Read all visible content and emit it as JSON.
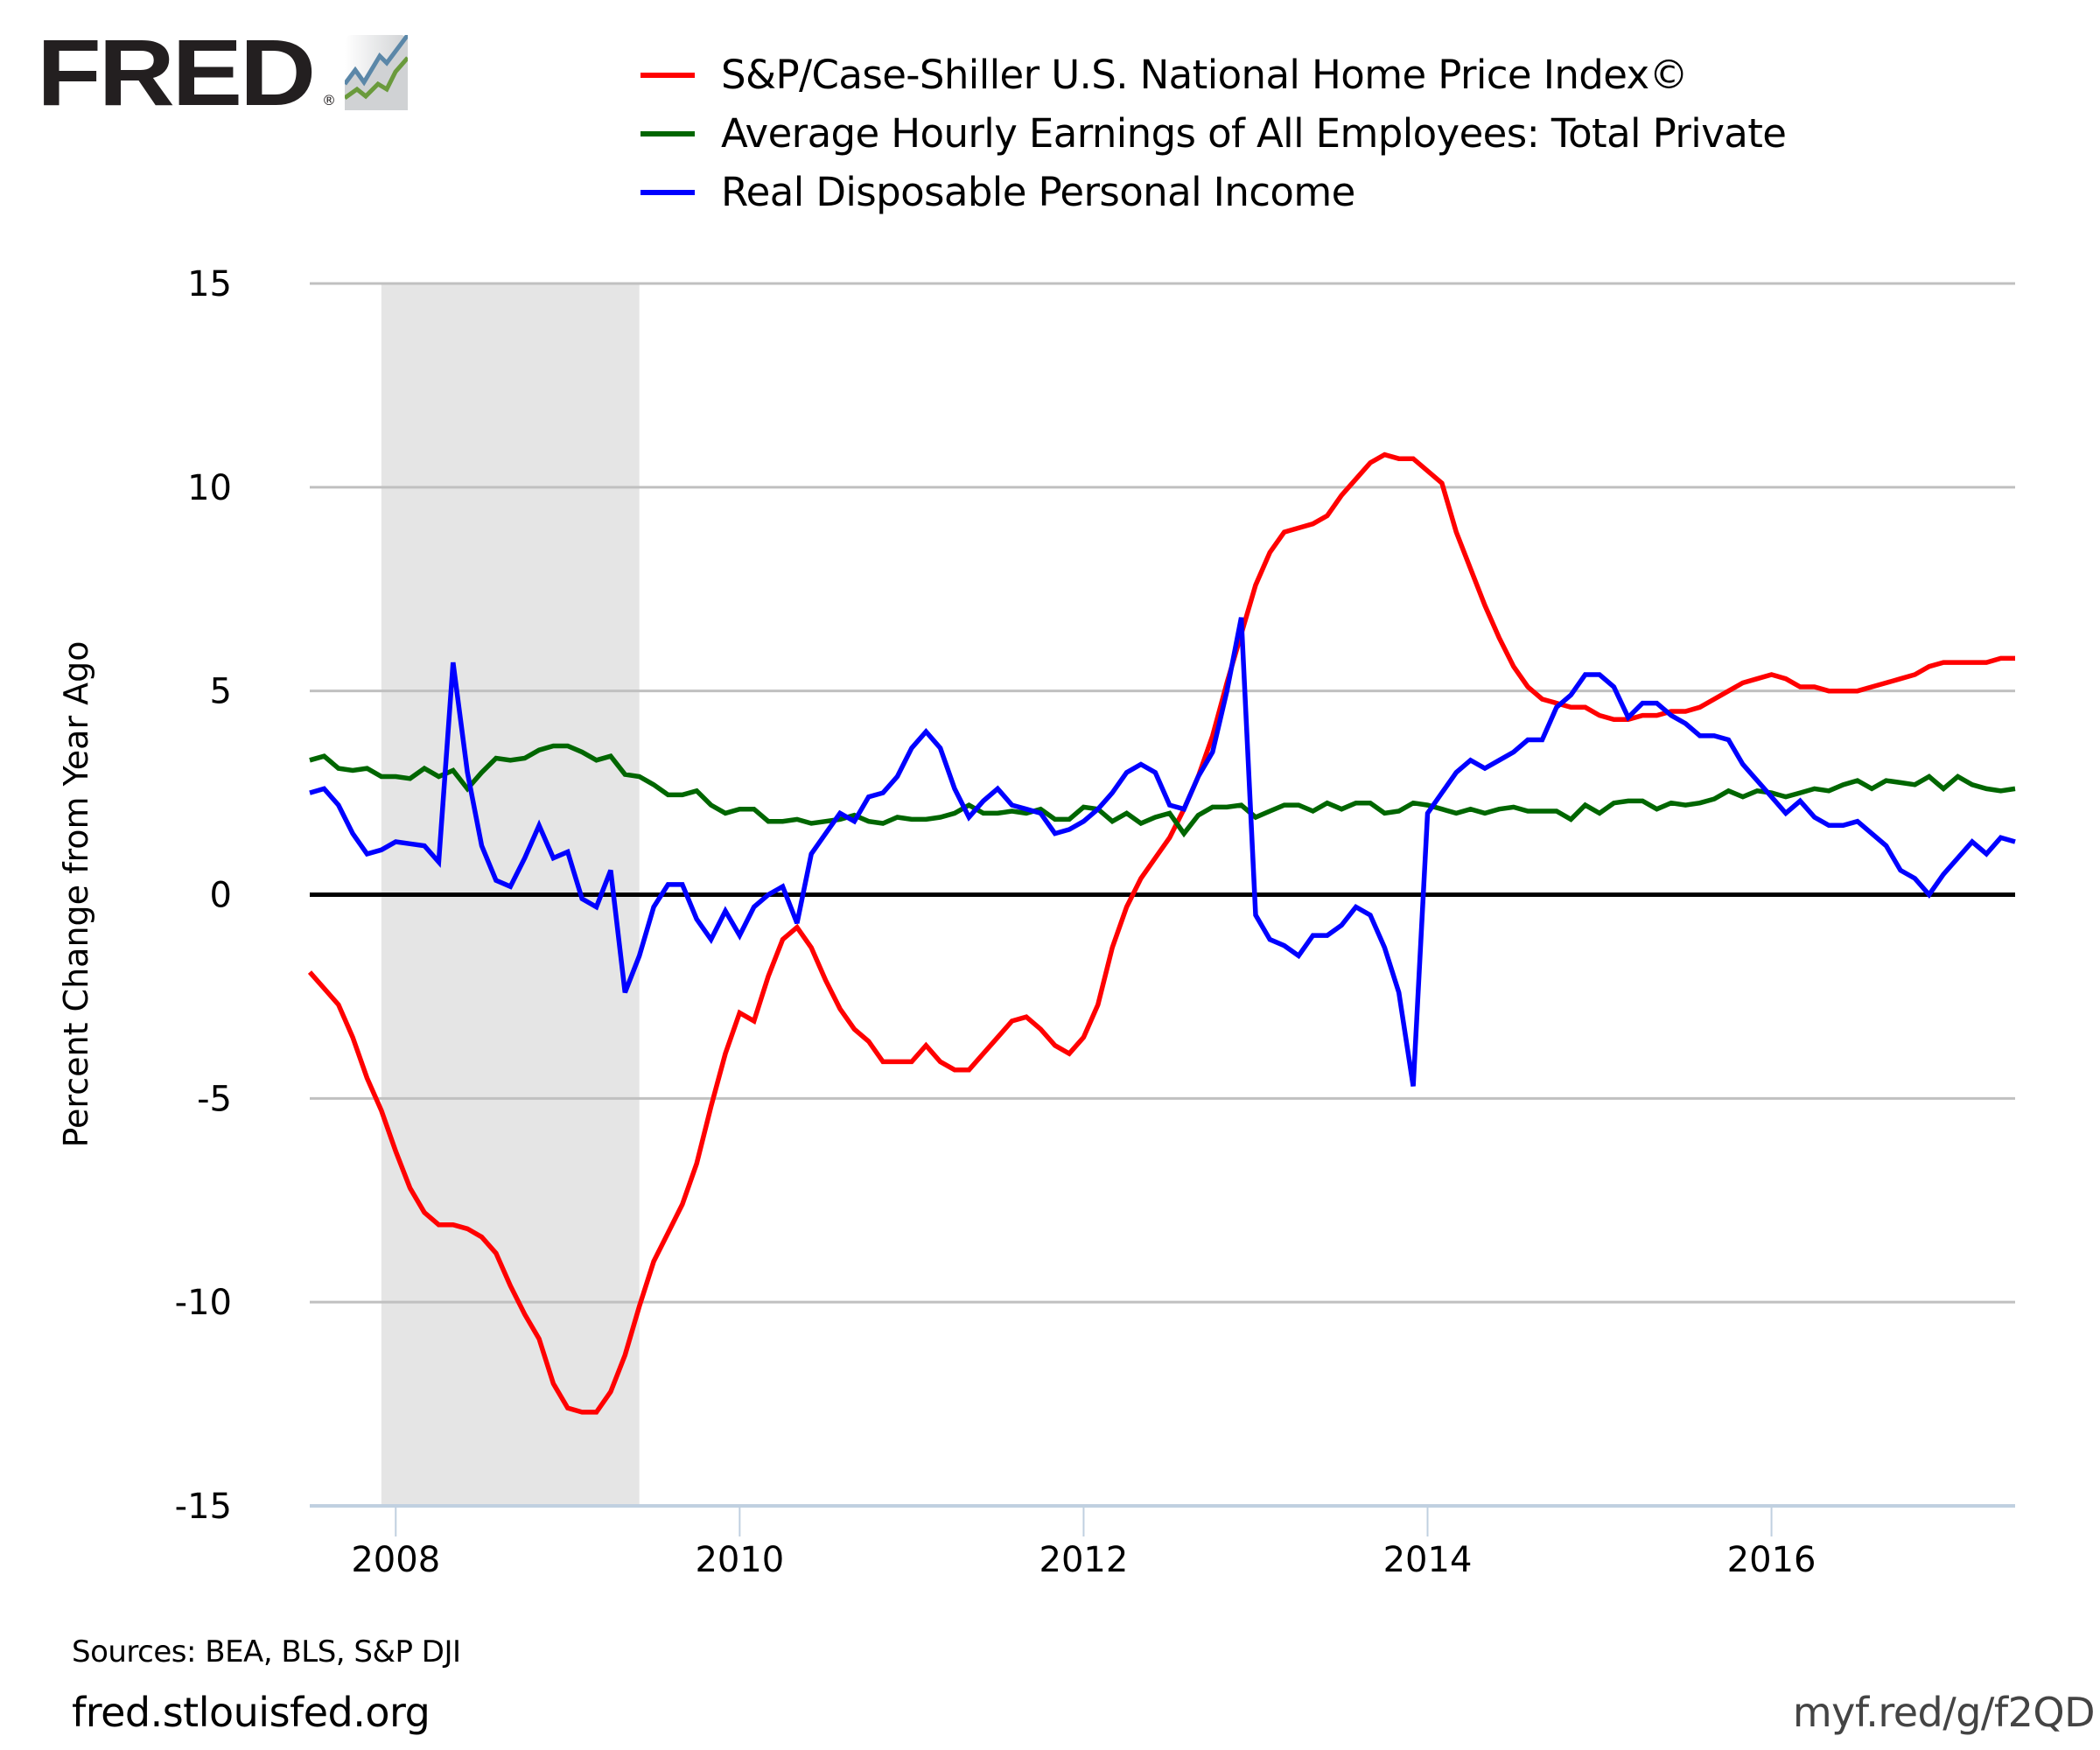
{
  "brand": {
    "logo_text": "FRED",
    "registered_mark": "®",
    "logo_icon": "line-chart-icon"
  },
  "footer": {
    "sources": "Sources: BEA, BLS, S&P DJI",
    "site": "fred.stlouisfed.org",
    "shortlink": "myf.red/g/f2QD"
  },
  "colors": {
    "series_red": "#FF0000",
    "series_green": "#006600",
    "series_blue": "#0000FF",
    "recession_shade": "#E5E5E5",
    "gridline": "#C0C0C0",
    "axis_line": "#C0D0E0",
    "zero_line": "#000000"
  },
  "chart_data": {
    "type": "line",
    "title": "",
    "xlabel": "",
    "ylabel": "Percent Change from Year Ago",
    "ylim": [
      -15,
      15
    ],
    "yticks": [
      15,
      10,
      5,
      0,
      -5,
      -10,
      -15
    ],
    "ytick_labels": [
      "15",
      "10",
      "5",
      "0",
      "-5",
      "-10",
      "-15"
    ],
    "xlim": [
      "2007-07",
      "2017-06"
    ],
    "xticks": [
      "2008",
      "2010",
      "2012",
      "2014",
      "2016"
    ],
    "grid": true,
    "legend_position": "top",
    "recession_shading": [
      {
        "start": "2007-12",
        "end": "2009-06"
      }
    ],
    "x_start": "2007-07",
    "frequency": "monthly",
    "series": [
      {
        "name": "S&P/Case-Shiller U.S. National Home Price Index©",
        "color": "#FF0000",
        "values": [
          -1.9,
          -2.3,
          -2.7,
          -3.5,
          -4.5,
          -5.3,
          -6.3,
          -7.2,
          -7.8,
          -8.1,
          -8.1,
          -8.2,
          -8.4,
          -8.8,
          -9.6,
          -10.3,
          -10.9,
          -12.0,
          -12.6,
          -12.7,
          -12.7,
          -12.2,
          -11.3,
          -10.1,
          -9.0,
          -8.3,
          -7.6,
          -6.6,
          -5.2,
          -3.9,
          -2.9,
          -3.1,
          -2.0,
          -1.1,
          -0.8,
          -1.3,
          -2.1,
          -2.8,
          -3.3,
          -3.6,
          -4.1,
          -4.1,
          -4.1,
          -3.7,
          -4.1,
          -4.3,
          -4.3,
          -3.9,
          -3.5,
          -3.1,
          -3.0,
          -3.3,
          -3.7,
          -3.9,
          -3.5,
          -2.7,
          -1.3,
          -0.3,
          0.4,
          0.9,
          1.4,
          2.1,
          2.9,
          3.9,
          5.2,
          6.4,
          7.6,
          8.4,
          8.9,
          9.0,
          9.1,
          9.3,
          9.8,
          10.2,
          10.6,
          10.8,
          10.7,
          10.7,
          10.4,
          10.1,
          8.9,
          8.0,
          7.1,
          6.3,
          5.6,
          5.1,
          4.8,
          4.7,
          4.6,
          4.6,
          4.4,
          4.3,
          4.3,
          4.4,
          4.4,
          4.5,
          4.5,
          4.6,
          4.8,
          5.0,
          5.2,
          5.3,
          5.4,
          5.3,
          5.1,
          5.1,
          5.0,
          5.0,
          5.0,
          5.1,
          5.2,
          5.3,
          5.4,
          5.6,
          5.7,
          5.7,
          5.7,
          5.7,
          5.8,
          5.8
        ]
      },
      {
        "name": "Average Hourly Earnings of All Employees: Total Private",
        "color": "#006600",
        "values": [
          3.3,
          3.4,
          3.1,
          3.05,
          3.1,
          2.9,
          2.9,
          2.85,
          3.1,
          2.9,
          3.05,
          2.6,
          3.0,
          3.35,
          3.3,
          3.35,
          3.55,
          3.65,
          3.65,
          3.5,
          3.3,
          3.4,
          2.95,
          2.9,
          2.7,
          2.45,
          2.45,
          2.55,
          2.2,
          2.0,
          2.1,
          2.1,
          1.8,
          1.8,
          1.85,
          1.75,
          1.8,
          1.85,
          1.95,
          1.8,
          1.75,
          1.9,
          1.85,
          1.85,
          1.9,
          2.0,
          2.2,
          2.0,
          2.0,
          2.05,
          2.0,
          2.1,
          1.85,
          1.85,
          2.15,
          2.1,
          1.8,
          2.0,
          1.75,
          1.9,
          2.0,
          1.5,
          1.95,
          2.15,
          2.15,
          2.2,
          1.9,
          2.05,
          2.2,
          2.2,
          2.05,
          2.25,
          2.1,
          2.25,
          2.25,
          2.0,
          2.05,
          2.25,
          2.2,
          2.1,
          2.0,
          2.1,
          2.0,
          2.1,
          2.15,
          2.05,
          2.05,
          2.05,
          1.85,
          2.2,
          2.0,
          2.25,
          2.3,
          2.3,
          2.1,
          2.25,
          2.2,
          2.25,
          2.35,
          2.55,
          2.4,
          2.55,
          2.5,
          2.4,
          2.5,
          2.6,
          2.55,
          2.7,
          2.8,
          2.6,
          2.8,
          2.75,
          2.7,
          2.9,
          2.6,
          2.9,
          2.7,
          2.6,
          2.55,
          2.6
        ]
      },
      {
        "name": "Real Disposable Personal Income",
        "color": "#0000FF",
        "values": [
          2.5,
          2.6,
          2.2,
          1.5,
          1.0,
          1.1,
          1.3,
          1.25,
          1.2,
          0.8,
          5.7,
          3.0,
          1.2,
          0.35,
          0.2,
          0.9,
          1.7,
          0.9,
          1.05,
          -0.1,
          -0.3,
          0.6,
          -2.4,
          -1.5,
          -0.3,
          0.25,
          0.25,
          -0.6,
          -1.1,
          -0.4,
          -1.0,
          -0.3,
          0.0,
          0.2,
          -0.7,
          1.0,
          1.5,
          2.0,
          1.8,
          2.4,
          2.5,
          2.9,
          3.6,
          4.0,
          3.6,
          2.6,
          1.9,
          2.3,
          2.6,
          2.2,
          2.1,
          2.0,
          1.5,
          1.6,
          1.8,
          2.1,
          2.5,
          3.0,
          3.2,
          3.0,
          2.2,
          2.1,
          2.9,
          3.5,
          5.0,
          6.8,
          -0.5,
          -1.1,
          -1.25,
          -1.5,
          -1.0,
          -1.0,
          -0.75,
          -0.3,
          -0.5,
          -1.3,
          -2.4,
          -4.7,
          2.0,
          2.5,
          3.0,
          3.3,
          3.1,
          3.3,
          3.5,
          3.8,
          3.8,
          4.6,
          4.9,
          5.4,
          5.4,
          5.1,
          4.35,
          4.7,
          4.7,
          4.4,
          4.2,
          3.9,
          3.9,
          3.8,
          3.2,
          2.8,
          2.4,
          2.0,
          2.3,
          1.9,
          1.7,
          1.7,
          1.8,
          1.5,
          1.2,
          0.6,
          0.4,
          0.0,
          0.5,
          0.9,
          1.3,
          1.0,
          1.4,
          1.3
        ]
      }
    ]
  }
}
